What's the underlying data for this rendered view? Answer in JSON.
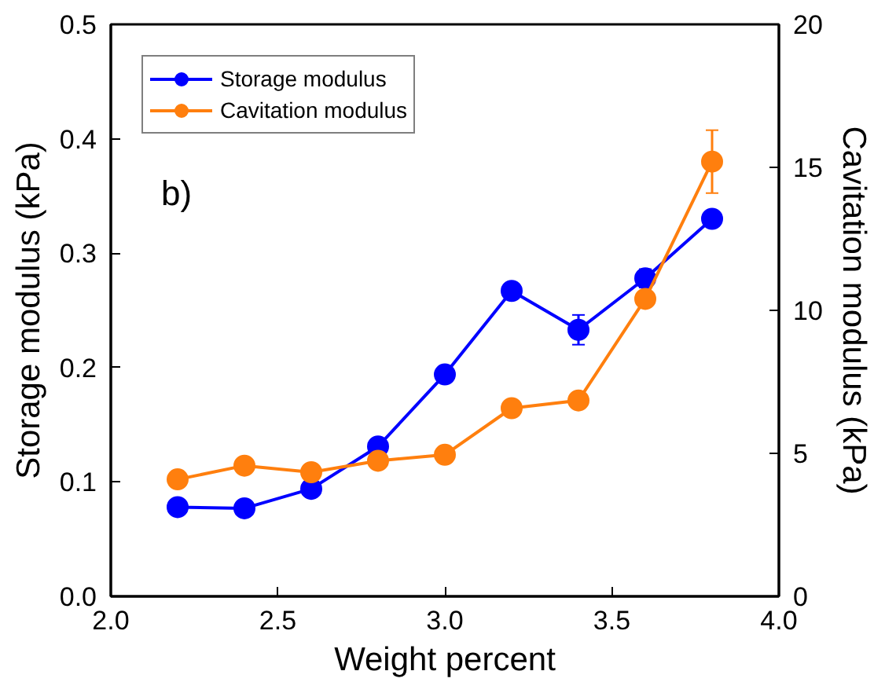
{
  "chart_data": {
    "type": "line",
    "xlabel": "Weight percent",
    "ylabel": "Storage modulus (kPa)",
    "y2label": "Cavitation modulus (kPa)",
    "x": [
      2.2,
      2.4,
      2.6,
      2.8,
      3.0,
      3.2,
      3.4,
      3.6,
      3.8
    ],
    "series": [
      {
        "name": "Storage modulus",
        "color": "#0000ff",
        "values": [
          0.078,
          0.077,
          0.094,
          0.131,
          0.194,
          0.267,
          0.233,
          0.278,
          0.33
        ],
        "errors": [
          null,
          null,
          null,
          null,
          null,
          null,
          0.013,
          0.008,
          null
        ]
      },
      {
        "name": "Cavitation modulus",
        "color": "#ff7f0e",
        "axis": "y2",
        "values": [
          4.09,
          4.57,
          4.34,
          4.74,
          4.95,
          6.58,
          6.85,
          10.4,
          15.2
        ],
        "errors": [
          null,
          null,
          null,
          null,
          null,
          null,
          null,
          null,
          1.1
        ]
      }
    ],
    "xlim": [
      2.0,
      4.0
    ],
    "xticks": [
      {
        "value": 2.0,
        "label": "2.0"
      },
      {
        "value": 2.5,
        "label": "2.5"
      },
      {
        "value": 3.0,
        "label": "3.0"
      },
      {
        "value": 3.5,
        "label": "3.5"
      },
      {
        "value": 4.0,
        "label": "4.0"
      }
    ],
    "ylim": [
      0,
      0.5
    ],
    "yticks": [
      {
        "value": 0,
        "label": "0.0"
      },
      0.1,
      0.2,
      0.3,
      0.4,
      0.5
    ],
    "y2lim": [
      0,
      20
    ],
    "y2ticks": [
      0,
      5,
      10,
      15,
      20
    ],
    "annotations": [
      "b)"
    ],
    "legend": "top left",
    "marker": "circle",
    "line_style": "solid",
    "grid": false
  }
}
